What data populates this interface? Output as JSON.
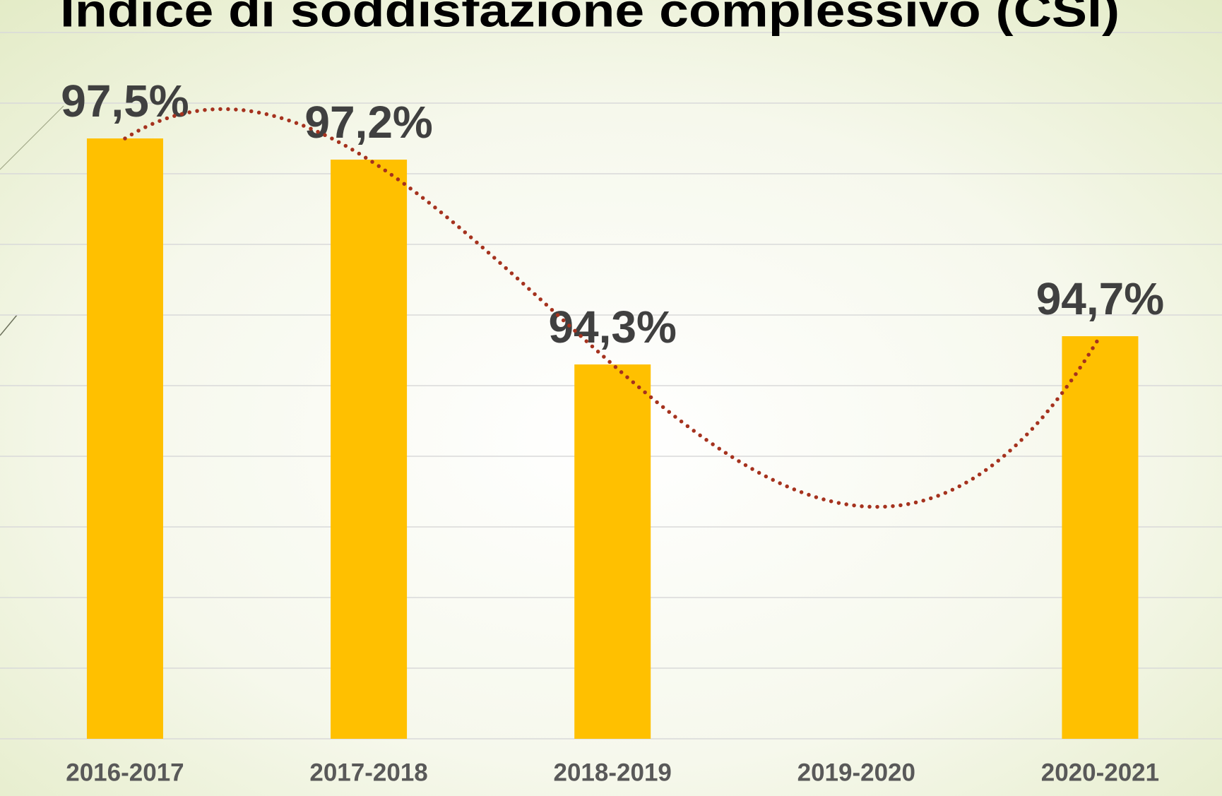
{
  "chart_data": {
    "type": "bar",
    "title": "Indice di soddisfazione complessivo (CSI)",
    "categories": [
      "2016-2017",
      "2017-2018",
      "2018-2019",
      "2019-2020",
      "2020-2021"
    ],
    "values": [
      97.5,
      97.2,
      94.3,
      null,
      94.7
    ],
    "value_labels": [
      "97,5%",
      "97,2%",
      "94,3%",
      null,
      "94,7%"
    ],
    "color": "#ffc000",
    "ylim": [
      89,
      99
    ],
    "yticks": [
      89,
      90,
      91,
      92,
      93,
      94,
      95,
      96,
      97,
      98,
      99
    ],
    "grid": true,
    "trendline": {
      "type": "polynomial",
      "color": "#a5321e"
    }
  }
}
